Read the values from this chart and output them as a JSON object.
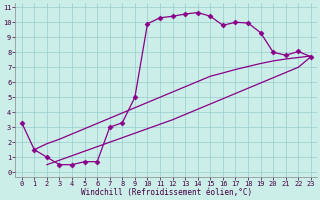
{
  "xlabel": "Windchill (Refroidissement éolien,°C)",
  "bg_color": "#cceee8",
  "line_color": "#880088",
  "grid_color": "#99cccc",
  "xlim": [
    0,
    23
  ],
  "ylim": [
    0,
    11
  ],
  "xticks": [
    0,
    1,
    2,
    3,
    4,
    5,
    6,
    7,
    8,
    9,
    10,
    11,
    12,
    13,
    14,
    15,
    16,
    17,
    18,
    19,
    20,
    21,
    22,
    23
  ],
  "yticks": [
    0,
    1,
    2,
    3,
    4,
    5,
    6,
    7,
    8,
    9,
    10,
    11
  ],
  "curve_x": [
    0,
    1,
    2,
    3,
    4,
    5,
    6,
    7,
    8,
    9,
    10,
    11,
    12,
    13,
    14,
    15,
    16,
    17,
    18,
    19,
    20,
    21,
    22,
    23
  ],
  "curve_y": [
    3.3,
    1.5,
    1.0,
    0.5,
    0.5,
    0.7,
    0.7,
    3.0,
    3.3,
    5.0,
    9.9,
    10.3,
    10.4,
    10.55,
    10.65,
    10.4,
    9.8,
    10.0,
    9.95,
    9.3,
    8.0,
    7.8,
    8.05,
    7.7
  ],
  "diag_upper_x": [
    1,
    2,
    3,
    4,
    5,
    6,
    7,
    8,
    9,
    10,
    11,
    12,
    13,
    14,
    15,
    16,
    17,
    18,
    19,
    20,
    21,
    22,
    23
  ],
  "diag_upper_y": [
    1.5,
    1.9,
    2.2,
    2.55,
    2.9,
    3.25,
    3.6,
    3.95,
    4.3,
    4.65,
    5.0,
    5.35,
    5.7,
    6.05,
    6.4,
    6.62,
    6.85,
    7.05,
    7.25,
    7.42,
    7.55,
    7.65,
    7.75
  ],
  "diag_lower_x": [
    2,
    3,
    4,
    5,
    6,
    7,
    8,
    9,
    10,
    11,
    12,
    13,
    14,
    15,
    16,
    17,
    18,
    19,
    20,
    21,
    22,
    23
  ],
  "diag_lower_y": [
    0.5,
    0.8,
    1.1,
    1.4,
    1.7,
    2.0,
    2.3,
    2.6,
    2.9,
    3.2,
    3.5,
    3.85,
    4.2,
    4.55,
    4.9,
    5.25,
    5.6,
    5.95,
    6.3,
    6.65,
    7.0,
    7.7
  ],
  "marker": "D",
  "markersize": 2.5,
  "linewidth": 0.9,
  "tick_fontsize": 5,
  "xlabel_fontsize": 5.5
}
